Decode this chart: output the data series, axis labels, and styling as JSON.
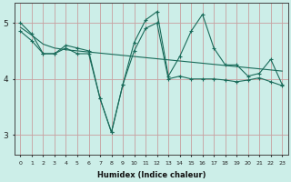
{
  "xlabel": "Humidex (Indice chaleur)",
  "background_color": "#cceee8",
  "grid_color": "#c8a0a0",
  "line_color": "#1a6b5a",
  "xlim": [
    -0.5,
    23.5
  ],
  "ylim": [
    2.65,
    5.35
  ],
  "yticks": [
    3,
    4,
    5
  ],
  "xticks": [
    0,
    1,
    2,
    3,
    4,
    5,
    6,
    7,
    8,
    9,
    10,
    11,
    12,
    13,
    14,
    15,
    16,
    17,
    18,
    19,
    20,
    21,
    22,
    23
  ],
  "series1_x": [
    0,
    1,
    2,
    3,
    4,
    5,
    6,
    7,
    8,
    9,
    10,
    11,
    12,
    13,
    14,
    15,
    16,
    17,
    18,
    19,
    20,
    21,
    22,
    23
  ],
  "series1_y": [
    5.0,
    4.8,
    4.45,
    4.45,
    4.6,
    4.55,
    4.5,
    3.65,
    3.05,
    3.9,
    4.65,
    5.05,
    5.2,
    4.05,
    4.4,
    4.85,
    5.15,
    4.55,
    4.25,
    4.25,
    4.05,
    4.1,
    4.35,
    3.9
  ],
  "series2_x": [
    0,
    1,
    2,
    3,
    4,
    5,
    6,
    7,
    8,
    9,
    10,
    11,
    12,
    13,
    14,
    15,
    16,
    17,
    18,
    19,
    20,
    21,
    22,
    23
  ],
  "series2_y": [
    4.92,
    4.78,
    4.62,
    4.55,
    4.52,
    4.5,
    4.48,
    4.46,
    4.44,
    4.42,
    4.4,
    4.38,
    4.36,
    4.34,
    4.32,
    4.3,
    4.28,
    4.26,
    4.24,
    4.22,
    4.2,
    4.18,
    4.16,
    4.14
  ],
  "series3_x": [
    0,
    1,
    2,
    3,
    4,
    5,
    6,
    7,
    8,
    9,
    10,
    11,
    12,
    13,
    14,
    15,
    16,
    17,
    18,
    19,
    20,
    21,
    22,
    23
  ],
  "series3_y": [
    4.85,
    4.68,
    4.45,
    4.45,
    4.55,
    4.45,
    4.45,
    3.65,
    3.05,
    3.9,
    4.5,
    4.9,
    5.0,
    4.0,
    4.05,
    4.0,
    4.0,
    4.0,
    3.98,
    3.95,
    3.98,
    4.02,
    3.95,
    3.88
  ]
}
